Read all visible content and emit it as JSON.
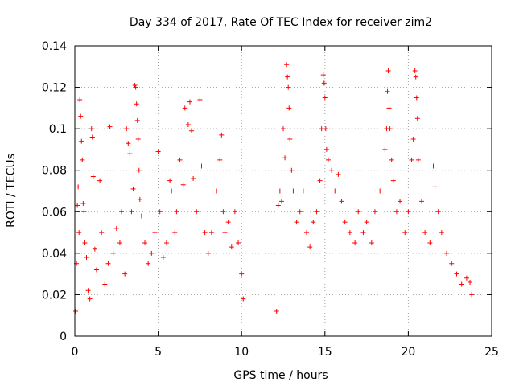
{
  "chart_data": {
    "type": "scatter",
    "title": "Day 334 of 2017, Rate Of TEC Index for receiver zim2",
    "xlabel": "GPS time / hours",
    "ylabel": "ROTI / TECUs",
    "xlim": [
      0,
      25
    ],
    "ylim": [
      0,
      0.14
    ],
    "x_ticks": [
      0,
      5,
      10,
      15,
      20,
      25
    ],
    "x_tick_labels": [
      "0",
      "5",
      "10",
      "15",
      "20",
      "25"
    ],
    "y_ticks": [
      0,
      0.02,
      0.04,
      0.06,
      0.08,
      0.1,
      0.12,
      0.14
    ],
    "y_tick_labels": [
      "0",
      "0.02",
      "0.04",
      "0.06",
      "0.08",
      "0.1",
      "0.12",
      "0.14"
    ],
    "grid": true,
    "marker": "+",
    "color": "#ff0000",
    "series": [
      {
        "points": [
          [
            0.05,
            0.012
          ],
          [
            0.1,
            0.035
          ],
          [
            0.15,
            0.063
          ],
          [
            0.2,
            0.072
          ],
          [
            0.25,
            0.05
          ],
          [
            0.3,
            0.114
          ],
          [
            0.35,
            0.106
          ],
          [
            0.4,
            0.094
          ],
          [
            0.45,
            0.085
          ],
          [
            0.5,
            0.064
          ],
          [
            0.55,
            0.06
          ],
          [
            0.6,
            0.045
          ],
          [
            0.7,
            0.038
          ],
          [
            0.8,
            0.022
          ],
          [
            0.9,
            0.018
          ],
          [
            1.0,
            0.1
          ],
          [
            1.05,
            0.096
          ],
          [
            1.1,
            0.077
          ],
          [
            1.2,
            0.042
          ],
          [
            1.3,
            0.032
          ],
          [
            1.5,
            0.075
          ],
          [
            1.6,
            0.05
          ],
          [
            1.8,
            0.025
          ],
          [
            2.0,
            0.035
          ],
          [
            2.1,
            0.101
          ],
          [
            2.3,
            0.04
          ],
          [
            2.5,
            0.052
          ],
          [
            2.7,
            0.045
          ],
          [
            2.8,
            0.06
          ],
          [
            3.0,
            0.03
          ],
          [
            3.1,
            0.1
          ],
          [
            3.2,
            0.093
          ],
          [
            3.3,
            0.088
          ],
          [
            3.4,
            0.06
          ],
          [
            3.5,
            0.071
          ],
          [
            3.6,
            0.121
          ],
          [
            3.65,
            0.12
          ],
          [
            3.7,
            0.112
          ],
          [
            3.75,
            0.104
          ],
          [
            3.8,
            0.095
          ],
          [
            3.85,
            0.08
          ],
          [
            3.9,
            0.066
          ],
          [
            4.0,
            0.058
          ],
          [
            4.2,
            0.045
          ],
          [
            4.4,
            0.035
          ],
          [
            4.6,
            0.04
          ],
          [
            4.8,
            0.05
          ],
          [
            5.0,
            0.089
          ],
          [
            5.1,
            0.06
          ],
          [
            5.3,
            0.038
          ],
          [
            5.5,
            0.045
          ],
          [
            5.7,
            0.075
          ],
          [
            5.8,
            0.07
          ],
          [
            6.0,
            0.05
          ],
          [
            6.1,
            0.06
          ],
          [
            6.3,
            0.085
          ],
          [
            6.5,
            0.073
          ],
          [
            6.6,
            0.11
          ],
          [
            6.8,
            0.102
          ],
          [
            6.9,
            0.113
          ],
          [
            7.0,
            0.099
          ],
          [
            7.1,
            0.076
          ],
          [
            7.3,
            0.06
          ],
          [
            7.5,
            0.114
          ],
          [
            7.6,
            0.082
          ],
          [
            7.8,
            0.05
          ],
          [
            8.0,
            0.04
          ],
          [
            8.2,
            0.05
          ],
          [
            8.5,
            0.07
          ],
          [
            8.7,
            0.085
          ],
          [
            8.8,
            0.097
          ],
          [
            8.9,
            0.06
          ],
          [
            9.0,
            0.05
          ],
          [
            9.2,
            0.055
          ],
          [
            9.4,
            0.043
          ],
          [
            9.6,
            0.06
          ],
          [
            9.8,
            0.045
          ],
          [
            10.0,
            0.03
          ],
          [
            10.1,
            0.018
          ],
          [
            12.1,
            0.012
          ],
          [
            12.2,
            0.063
          ],
          [
            12.3,
            0.07
          ],
          [
            12.4,
            0.065
          ],
          [
            12.5,
            0.1
          ],
          [
            12.6,
            0.086
          ],
          [
            12.7,
            0.131
          ],
          [
            12.75,
            0.125
          ],
          [
            12.8,
            0.12
          ],
          [
            12.85,
            0.11
          ],
          [
            12.9,
            0.095
          ],
          [
            13.0,
            0.08
          ],
          [
            13.1,
            0.07
          ],
          [
            13.3,
            0.055
          ],
          [
            13.5,
            0.06
          ],
          [
            13.7,
            0.07
          ],
          [
            13.9,
            0.05
          ],
          [
            14.1,
            0.043
          ],
          [
            14.3,
            0.055
          ],
          [
            14.5,
            0.06
          ],
          [
            14.7,
            0.075
          ],
          [
            14.8,
            0.1
          ],
          [
            14.9,
            0.126
          ],
          [
            14.95,
            0.122
          ],
          [
            15.0,
            0.115
          ],
          [
            15.05,
            0.1
          ],
          [
            15.1,
            0.09
          ],
          [
            15.2,
            0.085
          ],
          [
            15.4,
            0.08
          ],
          [
            15.6,
            0.07
          ],
          [
            15.8,
            0.078
          ],
          [
            16.0,
            0.065
          ],
          [
            16.2,
            0.055
          ],
          [
            16.5,
            0.05
          ],
          [
            16.8,
            0.045
          ],
          [
            17.0,
            0.06
          ],
          [
            17.3,
            0.05
          ],
          [
            17.5,
            0.055
          ],
          [
            17.8,
            0.045
          ],
          [
            18.0,
            0.06
          ],
          [
            18.3,
            0.07
          ],
          [
            18.6,
            0.09
          ],
          [
            18.7,
            0.1
          ],
          [
            18.75,
            0.118
          ],
          [
            18.8,
            0.128
          ],
          [
            18.85,
            0.11
          ],
          [
            18.9,
            0.1
          ],
          [
            19.0,
            0.085
          ],
          [
            19.1,
            0.075
          ],
          [
            19.3,
            0.06
          ],
          [
            19.5,
            0.065
          ],
          [
            19.8,
            0.05
          ],
          [
            20.0,
            0.06
          ],
          [
            20.2,
            0.085
          ],
          [
            20.3,
            0.095
          ],
          [
            20.4,
            0.128
          ],
          [
            20.45,
            0.125
          ],
          [
            20.5,
            0.115
          ],
          [
            20.55,
            0.105
          ],
          [
            20.6,
            0.085
          ],
          [
            20.8,
            0.065
          ],
          [
            21.0,
            0.05
          ],
          [
            21.3,
            0.045
          ],
          [
            21.5,
            0.082
          ],
          [
            21.6,
            0.072
          ],
          [
            21.8,
            0.06
          ],
          [
            22.0,
            0.05
          ],
          [
            22.3,
            0.04
          ],
          [
            22.6,
            0.035
          ],
          [
            22.9,
            0.03
          ],
          [
            23.2,
            0.025
          ],
          [
            23.5,
            0.028
          ],
          [
            23.7,
            0.026
          ],
          [
            23.8,
            0.02
          ]
        ]
      }
    ]
  }
}
